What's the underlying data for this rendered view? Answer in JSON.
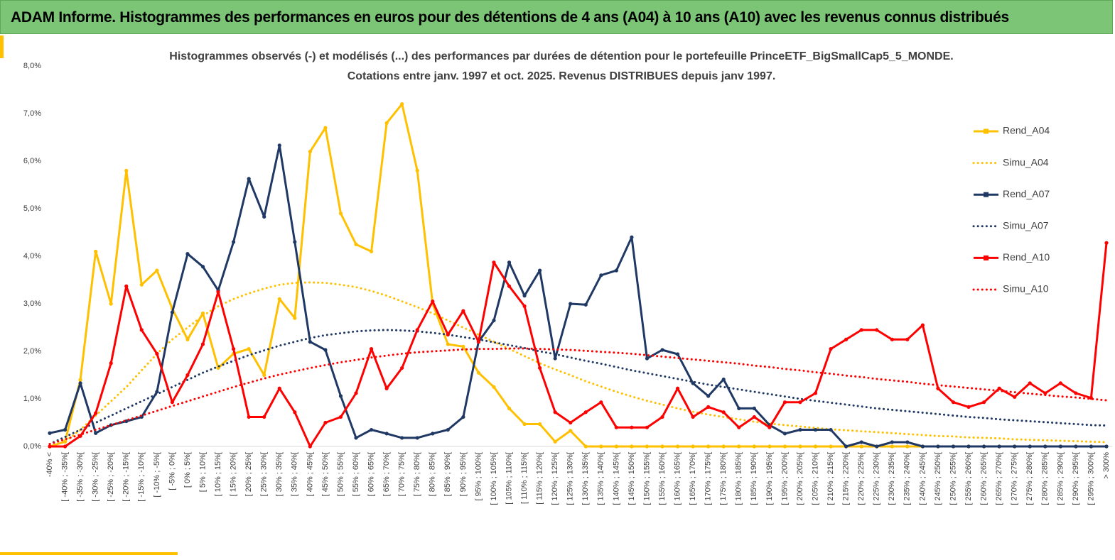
{
  "header": {
    "title": "ADAM Informe. Histogrammes des performances en euros pour des détentions de 4 ans (A04) à 10 ans (A10) avec les revenus connus distribués"
  },
  "chart_data": {
    "type": "line",
    "title": [
      "Histogrammes observés (-) et modélisés (...) des performances par durées de détention pour le portefeuille PrinceETF_BigSmallCap5_5_MONDE.",
      "Cotations entre janv. 1997 et oct. 2025. Revenus DISTRIBUES depuis janv 1997."
    ],
    "categories": [
      "-40% <",
      "[ -40% ; -35%[",
      "[ -35% ; -30%[",
      "[ -30% ; -25%[",
      "[ -25% ; -20%[",
      "[ -20% ; -15%[",
      "[ -15% ; -10%[",
      "[ -10% ; -5%[",
      "[ -5% ; 0%[",
      "[ 0% ; 5%[",
      "[ 5% ; 10%[",
      "[ 10% ; 15%[",
      "[ 15% ; 20%[",
      "[ 20% ; 25%[",
      "[ 25% ; 30%[",
      "[ 30% ; 35%[",
      "[ 35% ; 40%[",
      "[ 40% ; 45%[",
      "[ 45% ; 50%[",
      "[ 50% ; 55%[",
      "[ 55% ; 60%[",
      "[ 60% ; 65%[",
      "[ 65% ; 70%[",
      "[ 70% ; 75%[",
      "[ 75% ; 80%[",
      "[ 80% ; 85%[",
      "[ 85% ; 90%[",
      "[ 90% ; 95%[",
      "[ 95% ; 100%[",
      "[ 100% ; 105%[",
      "[ 105% ; 110%[",
      "[ 110% ; 115%[",
      "[ 115% ; 120%[",
      "[ 120% ; 125%[",
      "[ 125% ; 130%[",
      "[ 130% ; 135%[",
      "[ 135% ; 140%[",
      "[ 140% ; 145%[",
      "[ 145% ; 150%[",
      "[ 150% ; 155%[",
      "[ 155% ; 160%[",
      "[ 160% ; 165%[",
      "[ 165% ; 170%[",
      "[ 170% ; 175%[",
      "[ 175% ; 180%[",
      "[ 180% ; 185%[",
      "[ 185% ; 190%[",
      "[ 190% ; 195%[",
      "[ 195% ; 200%[",
      "[ 200% ; 205%[",
      "[ 205% ; 210%[",
      "[ 210% ; 215%[",
      "[ 215% ; 220%[",
      "[ 220% ; 225%[",
      "[ 225% ; 230%[",
      "[ 230% ; 235%[",
      "[ 235% ; 240%[",
      "[ 240% ; 245%[",
      "[ 245% ; 250%[",
      "[ 250% ; 255%[",
      "[ 255% ; 260%[",
      "[ 260% ; 265%[",
      "[ 265% ; 270%[",
      "[ 270% ; 275%[",
      "[ 275% ; 280%[",
      "[ 280% ; 285%[",
      "[ 285% ; 290%[",
      "[ 290% ; 295%[",
      "[ 295% ; 300%[",
      "> 300%"
    ],
    "ylim": [
      0,
      8
    ],
    "yticks": [
      {
        "value": 0,
        "label": "0,0%"
      },
      {
        "value": 1,
        "label": "1,0%"
      },
      {
        "value": 2,
        "label": "2,0%"
      },
      {
        "value": 3,
        "label": "3,0%"
      },
      {
        "value": 4,
        "label": "4,0%"
      },
      {
        "value": 5,
        "label": "5,0%"
      },
      {
        "value": 6,
        "label": "6,0%"
      },
      {
        "value": 7,
        "label": "7,0%"
      },
      {
        "value": 8,
        "label": "8,0%"
      }
    ],
    "legend": "right",
    "series": [
      {
        "name": "Rend_A04",
        "color": "#ffc000",
        "dotted": false,
        "values": [
          0,
          0.1,
          1.4,
          4.1,
          3.0,
          5.8,
          3.4,
          3.7,
          2.9,
          2.25,
          2.8,
          1.65,
          1.95,
          2.05,
          1.5,
          3.1,
          2.7,
          6.2,
          6.7,
          4.9,
          4.25,
          4.1,
          6.8,
          7.2,
          5.8,
          3.0,
          2.15,
          2.1,
          1.55,
          1.25,
          0.8,
          0.47,
          0.47,
          0.1,
          0.33,
          0,
          0,
          0,
          0,
          0,
          0,
          0,
          0,
          0,
          0,
          0,
          0,
          0,
          0,
          0,
          0,
          0,
          0,
          0,
          0,
          0,
          0,
          0,
          0,
          0,
          0,
          0,
          0,
          0,
          0,
          0,
          0,
          0,
          0,
          0
        ]
      },
      {
        "name": "Simu_A04",
        "color": "#ffc000",
        "dotted": true,
        "values": [
          0,
          0.1,
          0.35,
          0.65,
          0.95,
          1.25,
          1.6,
          1.95,
          2.25,
          2.5,
          2.75,
          2.95,
          3.1,
          3.22,
          3.32,
          3.4,
          3.44,
          3.45,
          3.44,
          3.4,
          3.35,
          3.27,
          3.17,
          3.05,
          2.93,
          2.8,
          2.65,
          2.5,
          2.35,
          2.2,
          2.05,
          1.9,
          1.75,
          1.62,
          1.5,
          1.37,
          1.26,
          1.15,
          1.05,
          0.96,
          0.88,
          0.8,
          0.73,
          0.67,
          0.62,
          0.57,
          0.52,
          0.48,
          0.45,
          0.42,
          0.39,
          0.36,
          0.34,
          0.32,
          0.3,
          0.28,
          0.26,
          0.24,
          0.22,
          0.21,
          0.19,
          0.18,
          0.17,
          0.15,
          0.14,
          0.13,
          0.12,
          0.11,
          0.1,
          0.09
        ]
      },
      {
        "name": "Rend_A07",
        "color": "#1f3864",
        "dotted": false,
        "values": [
          0.28,
          0.35,
          1.33,
          0.28,
          0.45,
          0.53,
          0.62,
          1.15,
          2.82,
          4.05,
          3.78,
          3.28,
          4.3,
          5.63,
          4.83,
          6.33,
          4.3,
          2.2,
          2.03,
          1.06,
          0.18,
          0.35,
          0.27,
          0.18,
          0.18,
          0.27,
          0.35,
          0.62,
          2.2,
          2.65,
          3.87,
          3.17,
          3.7,
          1.85,
          3.0,
          2.98,
          3.6,
          3.7,
          4.4,
          1.85,
          2.03,
          1.94,
          1.33,
          1.06,
          1.41,
          0.8,
          0.8,
          0.45,
          0.27,
          0.35,
          0.35,
          0.35,
          0,
          0.09,
          0,
          0.09,
          0.09,
          0,
          0,
          0,
          0,
          0,
          0,
          0,
          0,
          0,
          0,
          0,
          0,
          0
        ]
      },
      {
        "name": "Simu_A07",
        "color": "#1f3864",
        "dotted": true,
        "values": [
          0.05,
          0.2,
          0.35,
          0.5,
          0.65,
          0.8,
          0.95,
          1.1,
          1.25,
          1.4,
          1.55,
          1.68,
          1.8,
          1.92,
          2.02,
          2.12,
          2.2,
          2.28,
          2.34,
          2.38,
          2.42,
          2.44,
          2.45,
          2.44,
          2.42,
          2.39,
          2.35,
          2.3,
          2.25,
          2.19,
          2.13,
          2.07,
          2.0,
          1.94,
          1.87,
          1.8,
          1.74,
          1.67,
          1.6,
          1.54,
          1.48,
          1.42,
          1.36,
          1.3,
          1.25,
          1.2,
          1.15,
          1.1,
          1.05,
          1.0,
          0.96,
          0.92,
          0.88,
          0.84,
          0.8,
          0.77,
          0.74,
          0.71,
          0.68,
          0.65,
          0.62,
          0.6,
          0.57,
          0.55,
          0.53,
          0.51,
          0.49,
          0.47,
          0.45,
          0.44
        ]
      },
      {
        "name": "Rend_A10",
        "color": "#ff0000",
        "dotted": false,
        "values": [
          0,
          0,
          0.22,
          0.7,
          1.75,
          3.37,
          2.45,
          1.95,
          0.93,
          1.5,
          2.15,
          3.25,
          2.05,
          0.62,
          0.62,
          1.22,
          0.72,
          0,
          0.5,
          0.62,
          1.12,
          2.05,
          1.22,
          1.65,
          2.45,
          3.05,
          2.35,
          2.85,
          2.2,
          3.87,
          3.37,
          2.95,
          1.65,
          0.72,
          0.5,
          0.72,
          0.93,
          0.4,
          0.4,
          0.4,
          0.62,
          1.22,
          0.62,
          0.83,
          0.72,
          0.4,
          0.62,
          0.4,
          0.93,
          0.93,
          1.12,
          2.05,
          2.25,
          2.45,
          2.45,
          2.25,
          2.25,
          2.55,
          1.22,
          0.93,
          0.83,
          0.93,
          1.22,
          1.04,
          1.33,
          1.12,
          1.33,
          1.12,
          1.02,
          4.28
        ]
      },
      {
        "name": "Simu_A10",
        "color": "#ff0000",
        "dotted": true,
        "values": [
          0.05,
          0.15,
          0.25,
          0.35,
          0.45,
          0.55,
          0.65,
          0.75,
          0.85,
          0.95,
          1.05,
          1.15,
          1.25,
          1.34,
          1.43,
          1.51,
          1.58,
          1.65,
          1.71,
          1.77,
          1.82,
          1.87,
          1.91,
          1.95,
          1.98,
          2.0,
          2.02,
          2.04,
          2.05,
          2.05,
          2.06,
          2.06,
          2.05,
          2.04,
          2.03,
          2.01,
          1.99,
          1.97,
          1.95,
          1.92,
          1.89,
          1.86,
          1.83,
          1.8,
          1.77,
          1.74,
          1.7,
          1.67,
          1.63,
          1.6,
          1.56,
          1.53,
          1.49,
          1.46,
          1.42,
          1.39,
          1.36,
          1.32,
          1.29,
          1.26,
          1.23,
          1.2,
          1.17,
          1.14,
          1.11,
          1.08,
          1.05,
          1.03,
          1.0,
          0.97
        ]
      }
    ]
  }
}
